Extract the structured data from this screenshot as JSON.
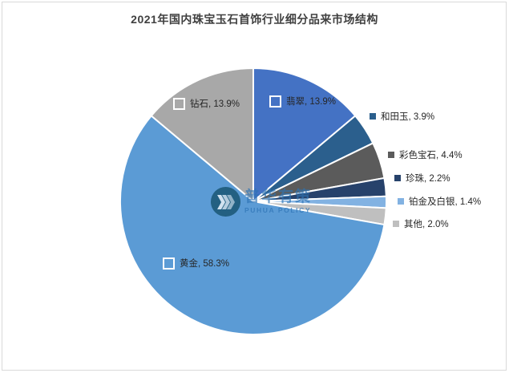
{
  "frame": {
    "title": "2021年国内珠宝玉石首饰行业细分品来市场结构"
  },
  "chart_data": {
    "type": "pie",
    "title": "2021年国内珠宝玉石首饰行业细分品来市场结构",
    "unit": "%",
    "start_angle_deg": 0,
    "direction": "clockwise",
    "legend_position": "none",
    "slices": [
      {
        "label": "翡翠",
        "value": 13.9,
        "color": "#4472C4",
        "label_text": "翡翠, 13.9%",
        "label_placement": "inside"
      },
      {
        "label": "和田玉",
        "value": 3.9,
        "color": "#2B5F8D",
        "label_text": "和田玉, 3.9%",
        "label_placement": "outside"
      },
      {
        "label": "彩色宝石",
        "value": 4.4,
        "color": "#5B5B5B",
        "label_text": "彩色宝石, 4.4%",
        "label_placement": "outside"
      },
      {
        "label": "珍珠",
        "value": 2.2,
        "color": "#27426B",
        "label_text": "珍珠, 2.2%",
        "label_placement": "outside"
      },
      {
        "label": "铂金及白银",
        "value": 1.4,
        "color": "#82B2E2",
        "label_text": "铂金及白银, 1.4%",
        "label_placement": "outside"
      },
      {
        "label": "其他",
        "value": 2.0,
        "color": "#BFBFBF",
        "label_text": "其他, 2.0%",
        "label_placement": "outside"
      },
      {
        "label": "黄金",
        "value": 58.3,
        "color": "#5B9BD5",
        "label_text": "黄金, 58.3%",
        "label_placement": "inside"
      },
      {
        "label": "钻石",
        "value": 13.9,
        "color": "#A8A8A8",
        "label_text": "钻石, 13.9%",
        "label_placement": "inside"
      }
    ]
  },
  "watermark": {
    "logo_text": "普华有策",
    "logo_subtext": "PUHUA POLICY",
    "brand_color": "#2E74B5",
    "circle_color": "#14506B",
    "chevrons_icon": "triple-chevron-right"
  }
}
